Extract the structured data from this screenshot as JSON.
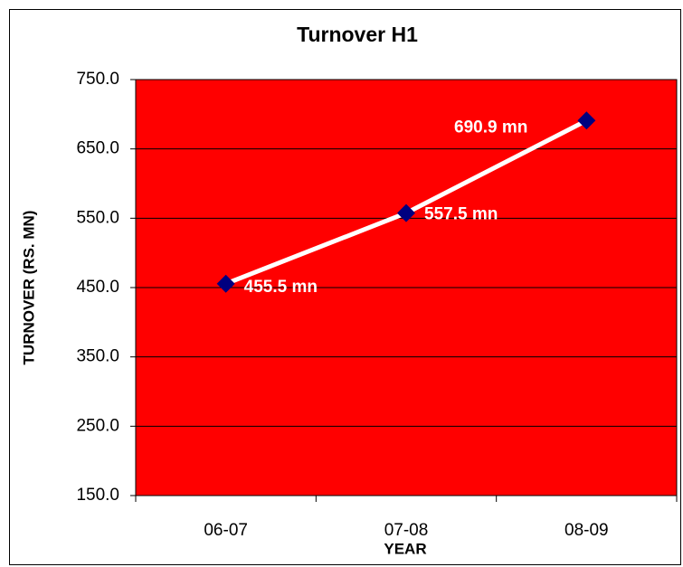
{
  "chart_data": {
    "type": "line",
    "title": "Turnover H1",
    "x_label": "YEAR",
    "y_label": "TURNOVER (RS. MN)",
    "categories": [
      "06-07",
      "07-08",
      "08-09"
    ],
    "series": [
      {
        "name": "Turnover",
        "color": "#ffffff",
        "marker_color": "#000080",
        "values": [
          455.5,
          557.5,
          690.9
        ],
        "value_labels": [
          "455.5 mn",
          "557.5 mn",
          "690.9 mn"
        ]
      }
    ],
    "ylim": [
      150,
      750
    ],
    "yticks": [
      {
        "value": 150,
        "label": "150.0"
      },
      {
        "value": 250,
        "label": "250.0"
      },
      {
        "value": 350,
        "label": "350.0"
      },
      {
        "value": 450,
        "label": "450.0"
      },
      {
        "value": 550,
        "label": "550.0"
      },
      {
        "value": 650,
        "label": "650.0"
      },
      {
        "value": 750,
        "label": "750.0"
      }
    ],
    "grid": true,
    "plot_background": "#ff0000"
  }
}
